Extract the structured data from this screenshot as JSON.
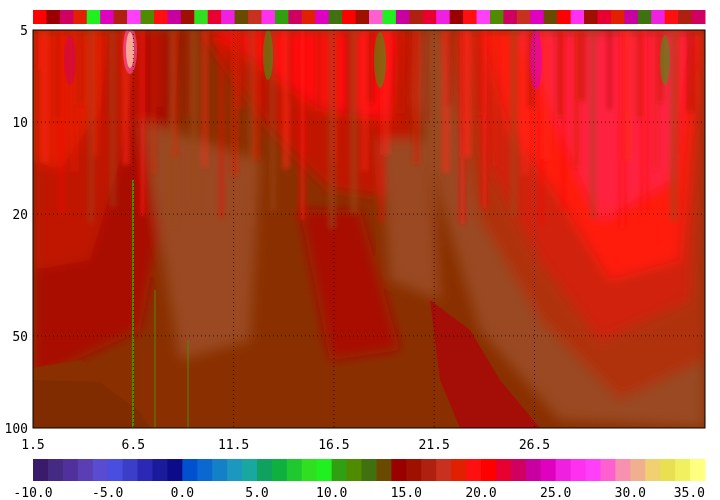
{
  "chart_data": {
    "type": "heatmap",
    "title": "",
    "xlabel": "",
    "ylabel": "",
    "x_ticks": [
      1.5,
      6.5,
      11.5,
      16.5,
      21.5,
      26.5
    ],
    "x_tick_labels": [
      "1.5",
      "6.5",
      "11.5",
      "16.5",
      "21.5",
      "26.5"
    ],
    "xlim": [
      1.5,
      35.0
    ],
    "y_ticks": [
      5,
      10,
      20,
      50,
      100
    ],
    "y_tick_labels": [
      "5",
      "10",
      "20",
      "50",
      "100"
    ],
    "ylim": [
      5,
      100
    ],
    "y_scale": "log",
    "y_inverted": true,
    "grid": "dotted",
    "colorbar": {
      "min": -10.0,
      "max": 35.0,
      "step": 1.0,
      "tick_values": [
        -10.0,
        -5.0,
        0.0,
        5.0,
        10.0,
        15.0,
        20.0,
        25.0,
        30.0,
        35.0
      ],
      "tick_labels": [
        "-10.0",
        "-5.0",
        "0.0",
        "5.0",
        "10.0",
        "15.0",
        "20.0",
        "25.0",
        "30.0",
        "35.0"
      ],
      "colors": [
        "#3a1a6a",
        "#452a82",
        "#50309a",
        "#5a3eb4",
        "#5a4cd0",
        "#4a4ee0",
        "#3a3ec8",
        "#2a28b4",
        "#1a1a9c",
        "#0c0c8a",
        "#0050d0",
        "#0a68d0",
        "#1480c8",
        "#1c98c0",
        "#18a8a0",
        "#10a060",
        "#10b040",
        "#20c830",
        "#30e020",
        "#20f020",
        "#30a010",
        "#508a00",
        "#407010",
        "#6a4a00",
        "#9a0000",
        "#a01000",
        "#b02010",
        "#c83020",
        "#e02000",
        "#ff1010",
        "#ff0000",
        "#e80030",
        "#d00060",
        "#c800a0",
        "#e000c0",
        "#f020e0",
        "#ff30f0",
        "#ff40f8",
        "#ff60d0",
        "#f890b0",
        "#f0b090",
        "#f0d070",
        "#e8e050",
        "#f0f060",
        "#ffff80"
      ]
    },
    "surface_temperatures": [
      20,
      14,
      22,
      18,
      9,
      24,
      16,
      27,
      11,
      19,
      23,
      15,
      8,
      21,
      25,
      13,
      17,
      26,
      10,
      22,
      18,
      24,
      12,
      20,
      15,
      28,
      9,
      23,
      16,
      21,
      25,
      14,
      19,
      27,
      11,
      22,
      17,
      24,
      13,
      20,
      26,
      15,
      21,
      18,
      23,
      12,
      25,
      19,
      16,
      22
    ]
  }
}
